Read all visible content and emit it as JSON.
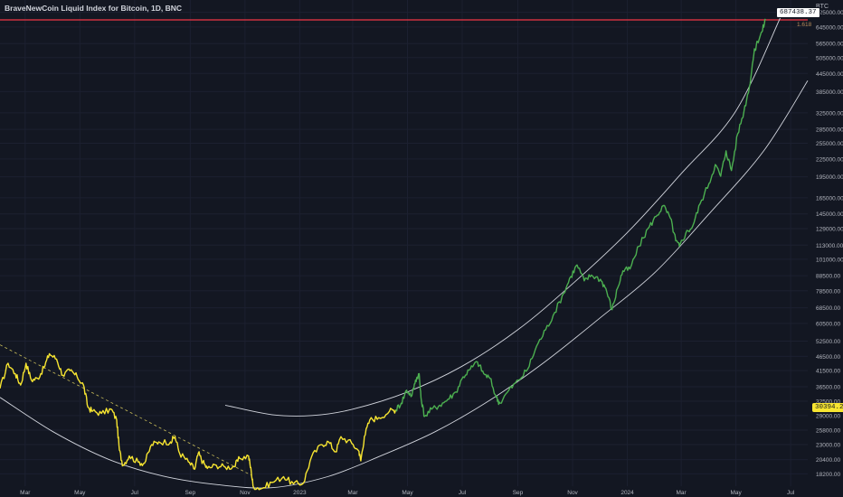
{
  "header": {
    "title": "BraveNewCoin Liquid Index for Bitcoin, 1D, BNC",
    "unit": "BTC",
    "fib_label": "1.618"
  },
  "tags": {
    "top_price": "687438.37",
    "current_price": "30394.27"
  },
  "colors": {
    "background": "#131722",
    "history_line": "#f7e531",
    "projection_line": "#4caf50",
    "channel": "#d1d4dc",
    "resistance": "#f23645",
    "dashed_trend": "#c9bd5a",
    "axis_text": "#b2b5be"
  },
  "chart_data": {
    "type": "line",
    "title": "BraveNewCoin Liquid Index for Bitcoin, 1D, BNC",
    "y_scale": "log",
    "ylim": [
      16500,
      800000
    ],
    "y_ticks": [
      725000,
      645000,
      565000,
      505000,
      445000,
      385000,
      325000,
      285000,
      255000,
      225000,
      195000,
      165000,
      145000,
      129000,
      113000,
      101000,
      88500,
      78500,
      68500,
      60500,
      52500,
      46500,
      41500,
      36500,
      32500,
      29000,
      25800,
      23000,
      20400,
      18200
    ],
    "x_ticks": [
      "Mar",
      "May",
      "Jul",
      "Sep",
      "Nov",
      "2023",
      "Mar",
      "May",
      "Jul",
      "Sep",
      "Nov",
      "2024",
      "Mar",
      "May",
      "Jul"
    ],
    "x_range": [
      "2022-02-01",
      "2024-07-20"
    ],
    "resistance_level": 687438,
    "series": [
      {
        "role": "history",
        "points": [
          [
            "2022-02-01",
            36000
          ],
          [
            "2022-02-10",
            44000
          ],
          [
            "2022-02-18",
            40500
          ],
          [
            "2022-02-24",
            37000
          ],
          [
            "2022-03-02",
            44000
          ],
          [
            "2022-03-08",
            38500
          ],
          [
            "2022-03-15",
            39000
          ],
          [
            "2022-03-22",
            42500
          ],
          [
            "2022-03-28",
            47500
          ],
          [
            "2022-04-05",
            45500
          ],
          [
            "2022-04-12",
            40000
          ],
          [
            "2022-04-20",
            41500
          ],
          [
            "2022-04-28",
            39500
          ],
          [
            "2022-05-05",
            37000
          ],
          [
            "2022-05-10",
            31000
          ],
          [
            "2022-05-15",
            30000
          ],
          [
            "2022-05-25",
            29500
          ],
          [
            "2022-06-05",
            30500
          ],
          [
            "2022-06-11",
            28000
          ],
          [
            "2022-06-14",
            22000
          ],
          [
            "2022-06-18",
            19500
          ],
          [
            "2022-06-25",
            21000
          ],
          [
            "2022-07-05",
            20000
          ],
          [
            "2022-07-12",
            19800
          ],
          [
            "2022-07-20",
            23000
          ],
          [
            "2022-07-28",
            23500
          ],
          [
            "2022-08-10",
            23500
          ],
          [
            "2022-08-15",
            24500
          ],
          [
            "2022-08-20",
            21500
          ],
          [
            "2022-08-30",
            20000
          ],
          [
            "2022-09-06",
            18900
          ],
          [
            "2022-09-10",
            21500
          ],
          [
            "2022-09-15",
            20000
          ],
          [
            "2022-09-20",
            19000
          ],
          [
            "2022-09-30",
            19500
          ],
          [
            "2022-10-10",
            19200
          ],
          [
            "2022-10-20",
            19300
          ],
          [
            "2022-10-26",
            20600
          ],
          [
            "2022-11-05",
            21000
          ],
          [
            "2022-11-08",
            18500
          ],
          [
            "2022-11-10",
            16500
          ],
          [
            "2022-11-20",
            16200
          ],
          [
            "2022-12-01",
            17000
          ],
          [
            "2022-12-14",
            17800
          ],
          [
            "2022-12-25",
            16800
          ],
          [
            "2023-01-05",
            16900
          ],
          [
            "2023-01-14",
            20800
          ],
          [
            "2023-01-25",
            23000
          ],
          [
            "2023-02-02",
            23500
          ],
          [
            "2023-02-10",
            21700
          ],
          [
            "2023-02-16",
            24500
          ],
          [
            "2023-02-28",
            23200
          ],
          [
            "2023-03-08",
            21800
          ],
          [
            "2023-03-10",
            20200
          ],
          [
            "2023-03-14",
            24500
          ],
          [
            "2023-03-20",
            28000
          ],
          [
            "2023-03-30",
            28500
          ],
          [
            "2023-04-11",
            30000
          ],
          [
            "2023-04-18",
            30394
          ]
        ]
      },
      {
        "role": "projection",
        "points": [
          [
            "2023-04-18",
            30394
          ],
          [
            "2023-04-24",
            32000
          ],
          [
            "2023-04-30",
            35500
          ],
          [
            "2023-05-06",
            34000
          ],
          [
            "2023-05-10",
            38500
          ],
          [
            "2023-05-14",
            40500
          ],
          [
            "2023-05-16",
            33500
          ],
          [
            "2023-05-20",
            28800
          ],
          [
            "2023-05-28",
            30500
          ],
          [
            "2023-06-06",
            31500
          ],
          [
            "2023-06-15",
            33000
          ],
          [
            "2023-06-24",
            35000
          ],
          [
            "2023-07-02",
            39500
          ],
          [
            "2023-07-10",
            42000
          ],
          [
            "2023-07-18",
            44500
          ],
          [
            "2023-07-25",
            40500
          ],
          [
            "2023-08-01",
            39000
          ],
          [
            "2023-08-08",
            33500
          ],
          [
            "2023-08-12",
            32000
          ],
          [
            "2023-08-22",
            35500
          ],
          [
            "2023-09-02",
            38500
          ],
          [
            "2023-09-12",
            42000
          ],
          [
            "2023-09-22",
            50500
          ],
          [
            "2023-10-02",
            57500
          ],
          [
            "2023-10-12",
            66000
          ],
          [
            "2023-10-22",
            77000
          ],
          [
            "2023-10-30",
            88000
          ],
          [
            "2023-11-06",
            96500
          ],
          [
            "2023-11-14",
            85000
          ],
          [
            "2023-11-22",
            89000
          ],
          [
            "2023-12-02",
            86000
          ],
          [
            "2023-12-08",
            80000
          ],
          [
            "2023-12-15",
            67500
          ],
          [
            "2023-12-21",
            80000
          ],
          [
            "2023-12-27",
            92000
          ],
          [
            "2024-01-04",
            93500
          ],
          [
            "2024-01-14",
            112000
          ],
          [
            "2024-01-24",
            129000
          ],
          [
            "2024-02-02",
            142000
          ],
          [
            "2024-02-10",
            155000
          ],
          [
            "2024-02-18",
            140000
          ],
          [
            "2024-02-24",
            117000
          ],
          [
            "2024-02-28",
            112000
          ],
          [
            "2024-03-06",
            124000
          ],
          [
            "2024-03-14",
            132000
          ],
          [
            "2024-03-22",
            157000
          ],
          [
            "2024-04-01",
            185000
          ],
          [
            "2024-04-08",
            215000
          ],
          [
            "2024-04-14",
            196000
          ],
          [
            "2024-04-20",
            240000
          ],
          [
            "2024-04-26",
            205000
          ],
          [
            "2024-05-03",
            275000
          ],
          [
            "2024-05-10",
            330000
          ],
          [
            "2024-05-16",
            400000
          ],
          [
            "2024-05-21",
            520000
          ],
          [
            "2024-05-25",
            575000
          ],
          [
            "2024-05-30",
            620000
          ],
          [
            "2024-06-03",
            687438
          ]
        ]
      }
    ],
    "channel_upper": [
      [
        "2022-10-10",
        31500
      ],
      [
        "2022-12-01",
        29200
      ],
      [
        "2023-01-15",
        29000
      ],
      [
        "2023-03-01",
        30500
      ],
      [
        "2023-05-01",
        35000
      ],
      [
        "2023-07-01",
        43000
      ],
      [
        "2023-09-01",
        57500
      ],
      [
        "2023-11-01",
        83000
      ],
      [
        "2024-01-01",
        125000
      ],
      [
        "2024-03-01",
        200000
      ],
      [
        "2024-05-01",
        330000
      ],
      [
        "2024-06-20",
        700000
      ]
    ],
    "channel_lower": [
      [
        "2022-02-01",
        33500
      ],
      [
        "2022-04-01",
        25500
      ],
      [
        "2022-06-01",
        20500
      ],
      [
        "2022-08-01",
        17900
      ],
      [
        "2022-10-01",
        16700
      ],
      [
        "2022-12-01",
        16300
      ],
      [
        "2023-02-01",
        17800
      ],
      [
        "2023-04-01",
        21000
      ],
      [
        "2023-06-01",
        25500
      ],
      [
        "2023-08-01",
        32800
      ],
      [
        "2023-10-01",
        44500
      ],
      [
        "2023-12-01",
        63000
      ],
      [
        "2024-02-01",
        91000
      ],
      [
        "2024-04-01",
        145000
      ],
      [
        "2024-06-01",
        240000
      ],
      [
        "2024-07-20",
        420000
      ]
    ],
    "dashed_trend": [
      [
        "2022-02-01",
        51000
      ],
      [
        "2022-11-08",
        18000
      ]
    ]
  }
}
